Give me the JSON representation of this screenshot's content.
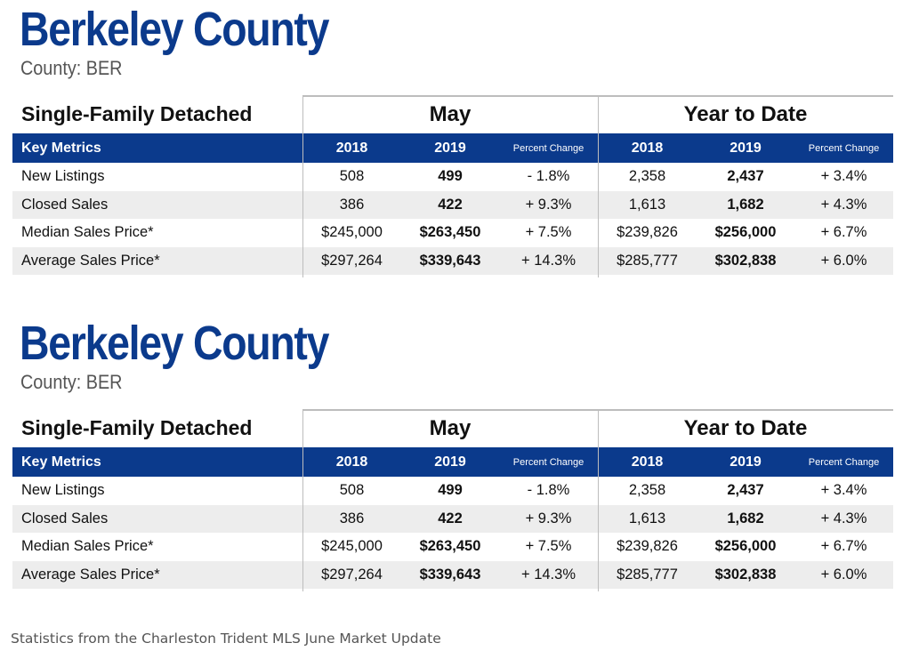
{
  "tables": [
    {
      "title": "Berkeley County",
      "subtitle": "County: BER",
      "section_label": "Single-Family Detached",
      "period_1": "May",
      "period_2": "Year to Date",
      "header": {
        "metric_label": "Key Metrics",
        "year_a": "2018",
        "year_b": "2019",
        "pct_label": "Percent Change"
      },
      "rows": [
        {
          "label": "New Listings",
          "may_2018": "508",
          "may_2019": "499",
          "may_pct": "- 1.8%",
          "ytd_2018": "2,358",
          "ytd_2019": "2,437",
          "ytd_pct": "+ 3.4%"
        },
        {
          "label": "Closed Sales",
          "may_2018": "386",
          "may_2019": "422",
          "may_pct": "+ 9.3%",
          "ytd_2018": "1,613",
          "ytd_2019": "1,682",
          "ytd_pct": "+ 4.3%"
        },
        {
          "label": "Median Sales Price*",
          "may_2018": "$245,000",
          "may_2019": "$263,450",
          "may_pct": "+ 7.5%",
          "ytd_2018": "$239,826",
          "ytd_2019": "$256,000",
          "ytd_pct": "+ 6.7%"
        },
        {
          "label": "Average Sales Price*",
          "may_2018": "$297,264",
          "may_2019": "$339,643",
          "may_pct": "+ 14.3%",
          "ytd_2018": "$285,777",
          "ytd_2019": "$302,838",
          "ytd_pct": "+ 6.0%"
        }
      ]
    },
    {
      "title": "Berkeley County",
      "subtitle": "County: BER",
      "section_label": "Single-Family Detached",
      "period_1": "May",
      "period_2": "Year to Date",
      "header": {
        "metric_label": "Key Metrics",
        "year_a": "2018",
        "year_b": "2019",
        "pct_label": "Percent Change"
      },
      "rows": [
        {
          "label": "New Listings",
          "may_2018": "508",
          "may_2019": "499",
          "may_pct": "- 1.8%",
          "ytd_2018": "2,358",
          "ytd_2019": "2,437",
          "ytd_pct": "+ 3.4%"
        },
        {
          "label": "Closed Sales",
          "may_2018": "386",
          "may_2019": "422",
          "may_pct": "+ 9.3%",
          "ytd_2018": "1,613",
          "ytd_2019": "1,682",
          "ytd_pct": "+ 4.3%"
        },
        {
          "label": "Median Sales Price*",
          "may_2018": "$245,000",
          "may_2019": "$263,450",
          "may_pct": "+ 7.5%",
          "ytd_2018": "$239,826",
          "ytd_2019": "$256,000",
          "ytd_pct": "+ 6.7%"
        },
        {
          "label": "Average Sales Price*",
          "may_2018": "$297,264",
          "may_2019": "$339,643",
          "may_pct": "+ 14.3%",
          "ytd_2018": "$285,777",
          "ytd_2019": "$302,838",
          "ytd_pct": "+ 6.0%"
        }
      ]
    }
  ],
  "footer": "Statistics from the Charleston Trident MLS June Market Update",
  "colors": {
    "title": "#0b3a8c",
    "header_bar": "#0b3a8c",
    "row_shade": "#ededed"
  }
}
